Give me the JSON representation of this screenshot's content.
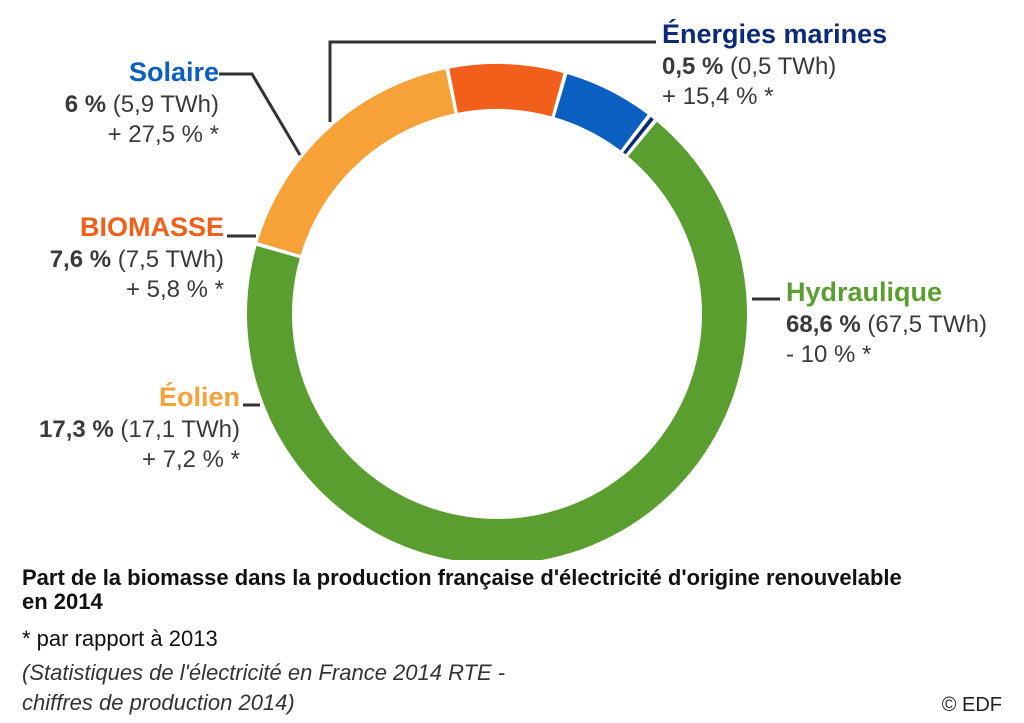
{
  "chart_data": {
    "type": "pie",
    "variant": "donut",
    "slices": [
      {
        "name": "Énergies marines",
        "percent_label": "0,5 %",
        "twh_label": "(0,5 TWh)",
        "change_label": "+ 15,4 % *",
        "value": 0.5,
        "color": "#0b2a78"
      },
      {
        "name": "Hydraulique",
        "percent_label": "68,6 %",
        "twh_label": "(67,5 TWh)",
        "change_label": "- 10 % *",
        "value": 68.6,
        "color": "#5a9e2f"
      },
      {
        "name": "Éolien",
        "percent_label": "17,3 %",
        "twh_label": "(17,1 TWh)",
        "change_label": "+ 7,2 % *",
        "value": 17.3,
        "color": "#f7a238"
      },
      {
        "name": "BIOMASSE",
        "percent_label": "7,6 %",
        "twh_label": "(7,5 TWh)",
        "change_label": "+ 5,8 % *",
        "value": 7.6,
        "color": "#f25f1a"
      },
      {
        "name": "Solaire",
        "percent_label": "6 %",
        "twh_label": "(5,9 TWh)",
        "change_label": "+ 27,5 % *",
        "value": 6,
        "color": "#0b5fc0"
      }
    ],
    "title": "Part de la biomasse dans la production française d'électricité d'origine renouvelable en 2014"
  },
  "labels": {
    "marine": {
      "name": "Énergies marines",
      "pct": "0,5 %",
      "twh": "(0,5 TWh)",
      "change": "+ 15,4 % *"
    },
    "solaire": {
      "name": "Solaire",
      "pct": "6 %",
      "twh": "(5,9 TWh)",
      "change": "+ 27,5 % *"
    },
    "biomasse": {
      "name": "BIOMASSE",
      "pct": "7,6 %",
      "twh": "(7,5 TWh)",
      "change": "+ 5,8 % *"
    },
    "eolien": {
      "name": "Éolien",
      "pct": "17,3 %",
      "twh": "(17,1 TWh)",
      "change": "+ 7,2 % *"
    },
    "hydro": {
      "name": "Hydraulique",
      "pct": "68,6 %",
      "twh": "(67,5 TWh)",
      "change": "- 10 % *"
    }
  },
  "footer": {
    "title": "Part de la biomasse dans la production française d'électricité d'origine renouvelable en 2014",
    "note": "* par rapport à 2013",
    "source_line1": "(Statistiques de l'électricité en France 2014 RTE -",
    "source_line2": "chiffres de production 2014)",
    "copyright": "© EDF"
  },
  "colors": {
    "marine": "#0b2a78",
    "solaire": "#0b5fc0",
    "biomasse": "#f25f1a",
    "eolien": "#f7a238",
    "hydro": "#5a9e2f",
    "leader": "#333333"
  }
}
